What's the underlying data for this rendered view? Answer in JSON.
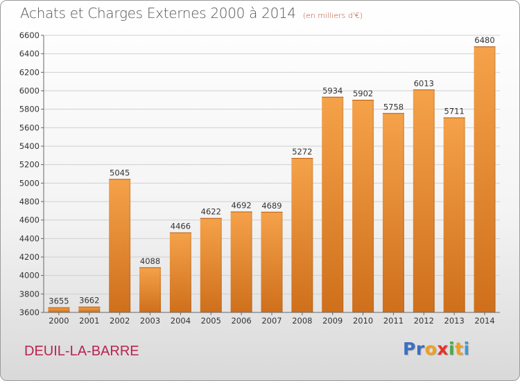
{
  "title": "Achats et Charges Externes 2000 à 2014",
  "subtitle": "(en milliers d'€)",
  "city": "DEUIL-LA-BARRE",
  "logo": {
    "letters": [
      "P",
      "r",
      "o",
      "x",
      "i",
      "t",
      "i"
    ],
    "colors": [
      "#3a6fc4",
      "#3a6fc4",
      "#f0a020",
      "#e8302c",
      "#4aa84a",
      "#f0a020",
      "#3a9bd8"
    ]
  },
  "colors": {
    "bar": "#f19a3e",
    "bar_dark": "#d7751e",
    "grid": "#cfcfcf",
    "axis": "#666666",
    "text": "#333333"
  },
  "chart_data": {
    "type": "bar",
    "categories": [
      "2000",
      "2001",
      "2002",
      "2003",
      "2004",
      "2005",
      "2006",
      "2007",
      "2008",
      "2009",
      "2010",
      "2011",
      "2012",
      "2013",
      "2014"
    ],
    "values": [
      3655,
      3662,
      5045,
      4088,
      4466,
      4622,
      4692,
      4689,
      5272,
      5934,
      5902,
      5758,
      6013,
      5711,
      6480
    ],
    "ylim": [
      3600,
      6600
    ],
    "yticks": [
      3600,
      3800,
      4000,
      4200,
      4400,
      4600,
      4800,
      5000,
      5200,
      5400,
      5600,
      5800,
      6000,
      6200,
      6400,
      6600
    ],
    "grid": true,
    "xlabel": "",
    "ylabel": ""
  }
}
